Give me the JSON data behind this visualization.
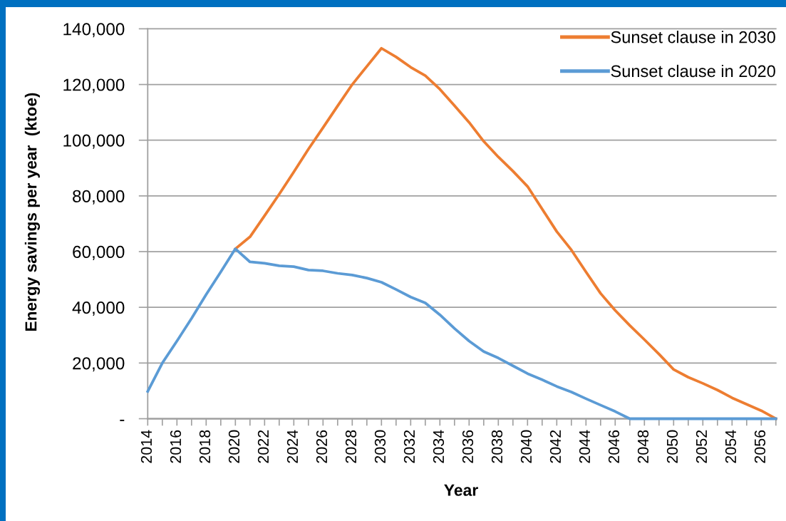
{
  "chart_data": {
    "type": "line",
    "xlabel": "Year",
    "ylabel": "Energy savings per year  (ktoe)",
    "x": [
      2014,
      2015,
      2016,
      2017,
      2018,
      2019,
      2020,
      2021,
      2022,
      2023,
      2024,
      2025,
      2026,
      2027,
      2028,
      2029,
      2030,
      2031,
      2032,
      2033,
      2034,
      2035,
      2036,
      2037,
      2038,
      2039,
      2040,
      2041,
      2042,
      2043,
      2044,
      2045,
      2046,
      2047,
      2048,
      2049,
      2050,
      2051,
      2052,
      2053,
      2054,
      2055,
      2056,
      2057
    ],
    "series": [
      {
        "name": "Sunset clause in 2030",
        "color": "#ed7d31",
        "values": [
          null,
          null,
          null,
          null,
          null,
          null,
          61000,
          65300,
          72900,
          80600,
          88600,
          96800,
          104500,
          112300,
          120000,
          126500,
          133000,
          129900,
          126200,
          123200,
          118300,
          112400,
          106400,
          99600,
          94000,
          88900,
          83400,
          75300,
          67200,
          60600,
          52700,
          45000,
          38900,
          33500,
          28400,
          23200,
          17700,
          14900,
          12700,
          10300,
          7500,
          5200,
          2900,
          0
        ]
      },
      {
        "name": "Sunset clause in 2020",
        "color": "#5b9bd5",
        "values": [
          9800,
          20000,
          27900,
          36000,
          44600,
          52700,
          61000,
          56300,
          55800,
          54900,
          54600,
          53400,
          53100,
          52200,
          51600,
          50500,
          49000,
          46400,
          43700,
          41600,
          37300,
          32400,
          27900,
          24100,
          21800,
          19000,
          16200,
          14000,
          11600,
          9600,
          7200,
          4900,
          2600,
          0,
          0,
          0,
          0,
          0,
          0,
          0,
          0,
          0,
          0,
          0
        ]
      }
    ],
    "xlim": [
      2014,
      2057
    ],
    "xticks": [
      2014,
      {
        "value": 2015,
        "label": null
      },
      2016,
      {
        "value": 2017,
        "label": null
      },
      2018,
      {
        "value": 2019,
        "label": null
      },
      2020,
      {
        "value": 2021,
        "label": null
      },
      2022,
      {
        "value": 2023,
        "label": null
      },
      2024,
      {
        "value": 2025,
        "label": null
      },
      2026,
      {
        "value": 2027,
        "label": null
      },
      2028,
      {
        "value": 2029,
        "label": null
      },
      2030,
      {
        "value": 2031,
        "label": null
      },
      2032,
      {
        "value": 2033,
        "label": null
      },
      2034,
      {
        "value": 2035,
        "label": null
      },
      2036,
      {
        "value": 2037,
        "label": null
      },
      2038,
      {
        "value": 2039,
        "label": null
      },
      2040,
      {
        "value": 2041,
        "label": null
      },
      2042,
      {
        "value": 2043,
        "label": null
      },
      2044,
      {
        "value": 2045,
        "label": null
      },
      2046,
      {
        "value": 2047,
        "label": null
      },
      2048,
      {
        "value": 2049,
        "label": null
      },
      2050,
      {
        "value": 2051,
        "label": null
      },
      2052,
      {
        "value": 2053,
        "label": null
      },
      2054,
      {
        "value": 2055,
        "label": null
      },
      2056,
      {
        "value": 2057,
        "label": null
      }
    ],
    "ylim": [
      0,
      140000
    ],
    "yticks": [
      {
        "value": 0,
        "label": "-"
      },
      {
        "value": 20000,
        "label": "20,000"
      },
      {
        "value": 40000,
        "label": "40,000"
      },
      {
        "value": 60000,
        "label": "60,000"
      },
      {
        "value": 80000,
        "label": "80,000"
      },
      {
        "value": 100000,
        "label": "100,000"
      },
      {
        "value": 120000,
        "label": "120,000"
      },
      {
        "value": 140000,
        "label": "140,000"
      }
    ],
    "grid": "y",
    "legend": "top right",
    "line_style": "solid"
  }
}
